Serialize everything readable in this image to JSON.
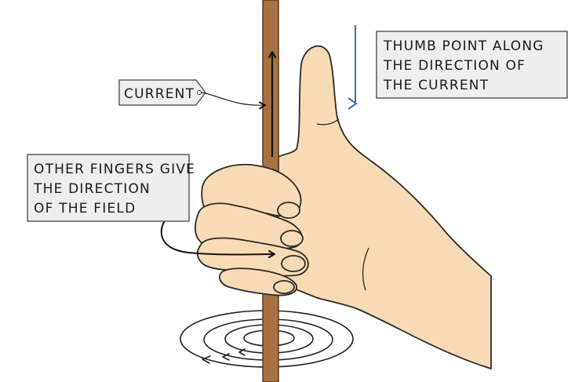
{
  "labels": {
    "current": "CURRENT",
    "thumb_lines": [
      "THUMB POINT ALONG",
      "THE DIRECTION OF",
      "THE CURRENT"
    ],
    "fingers_lines": [
      "OTHER FINGERS GIVE",
      "THE DIRECTION",
      "OF THE FIELD"
    ]
  },
  "colors": {
    "wire": "#a87343",
    "wire_outline": "#5a3a1e",
    "skin": "#f6dbb4",
    "skin_outline": "#2a2a2a",
    "label_bg": "#eeeeee",
    "label_border": "#444444",
    "current_arrow": "#3b6fb6",
    "field_lines": "#222222"
  }
}
